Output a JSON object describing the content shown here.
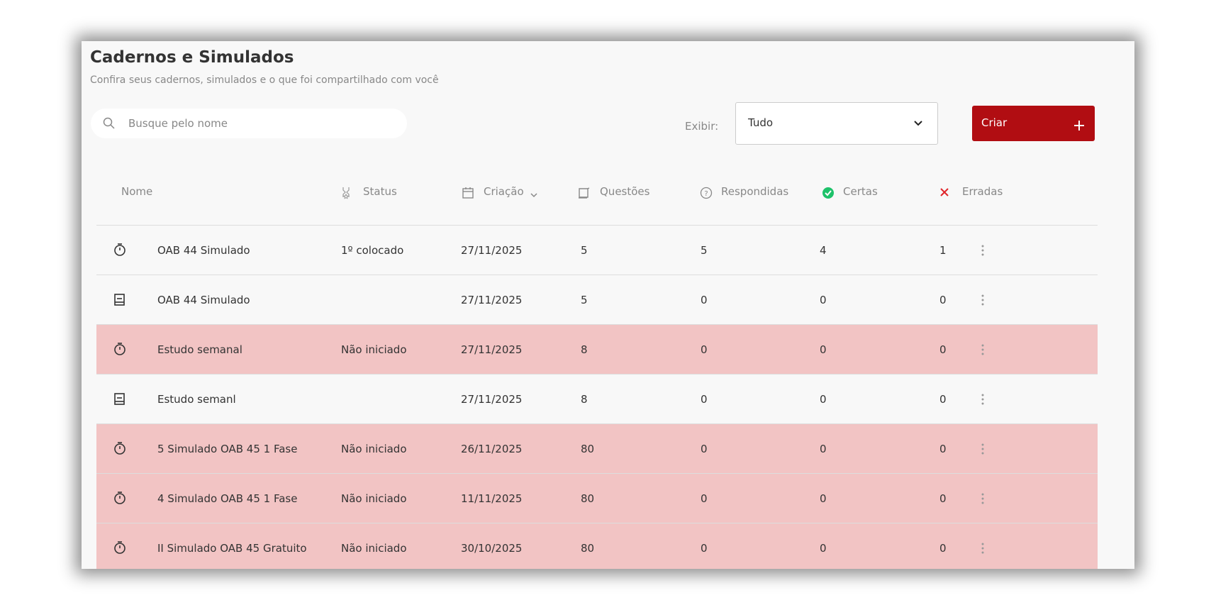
{
  "header": {
    "title": "Cadernos e Simulados",
    "subtitle": "Confira seus cadernos, simulados e o que foi compartilhado com você"
  },
  "search": {
    "placeholder": "Busque pelo nome"
  },
  "filter": {
    "label": "Exibir:",
    "value": "Tudo"
  },
  "button": {
    "label": "Criar"
  },
  "table": {
    "columns": [
      "Nome",
      "Status",
      "Criação",
      "Questões",
      "Respondidas",
      "Certas",
      "Erradas"
    ],
    "rows": [
      {
        "icon": "timer",
        "highlight": false,
        "cells": [
          "OAB 44 Simulado",
          "1º colocado",
          "27/11/2025",
          5,
          5,
          4,
          1
        ]
      },
      {
        "icon": "book",
        "highlight": false,
        "cells": [
          "OAB 44 Simulado",
          null,
          "27/11/2025",
          5,
          0,
          0,
          0
        ]
      },
      {
        "icon": "timer",
        "highlight": true,
        "cells": [
          "Estudo semanal",
          "Não iniciado",
          "27/11/2025",
          8,
          0,
          0,
          0
        ]
      },
      {
        "icon": "book",
        "highlight": false,
        "cells": [
          "Estudo semanl",
          null,
          "27/11/2025",
          8,
          0,
          0,
          0
        ]
      },
      {
        "icon": "timer",
        "highlight": true,
        "cells": [
          "5 Simulado OAB 45 1 Fase",
          "Não iniciado",
          "26/11/2025",
          80,
          0,
          0,
          0
        ]
      },
      {
        "icon": "timer",
        "highlight": true,
        "cells": [
          "4 Simulado OAB 45 1 Fase",
          "Não iniciado",
          "11/11/2025",
          80,
          0,
          0,
          0
        ]
      },
      {
        "icon": "timer",
        "highlight": true,
        "cells": [
          "II Simulado OAB 45 Gratuito",
          "Não iniciado",
          "30/10/2025",
          80,
          0,
          0,
          0
        ]
      }
    ]
  }
}
